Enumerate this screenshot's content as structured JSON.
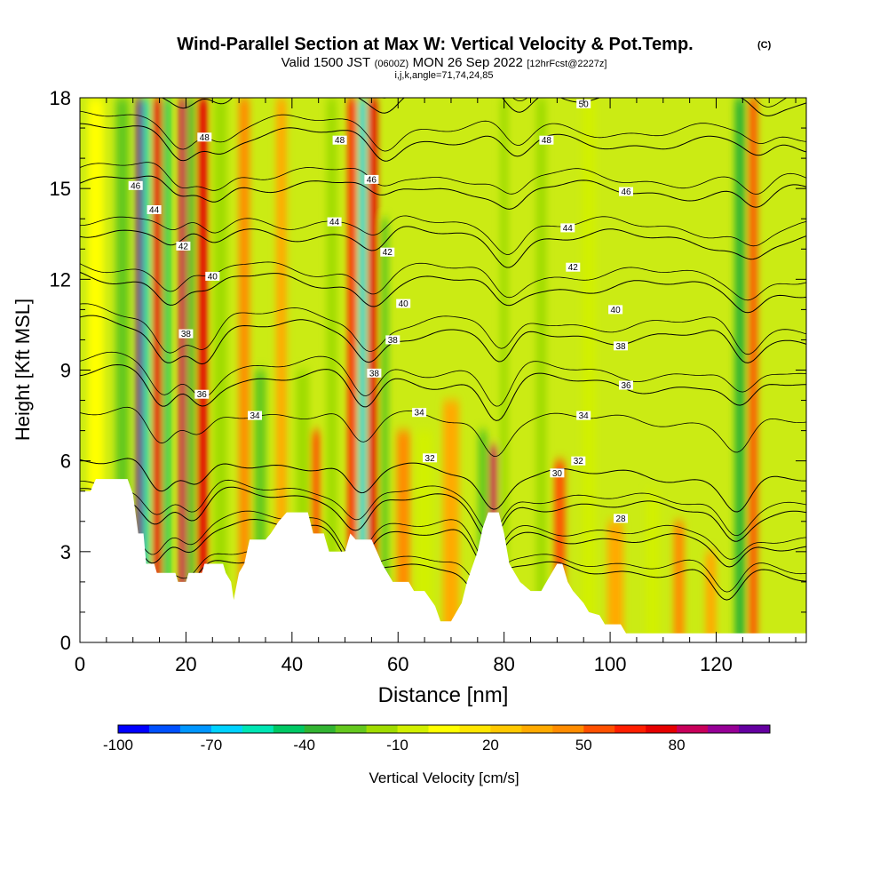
{
  "chart_data": {
    "type": "heatmap",
    "title": "Wind-Parallel Section at Max W: Vertical Velocity & Pot.Temp.",
    "title_mark": "(C)",
    "subtitle_parts": [
      "Valid 1500 JST",
      "(0600Z)",
      "MON 26 Sep 2022",
      "[12hrFcst@2227z]"
    ],
    "subtitle2": "i,j,k,angle=71,74,24,85",
    "xlabel": "Distance [nm]",
    "ylabel": "Height [Kft MSL]",
    "xlim": [
      0,
      137
    ],
    "ylim": [
      0,
      18
    ],
    "x_ticks": [
      0,
      20,
      40,
      60,
      80,
      100,
      120
    ],
    "y_ticks": [
      0,
      3,
      6,
      9,
      12,
      15,
      18
    ],
    "colorbar": {
      "label": "Vertical Velocity [cm/s]",
      "tick_labels": [
        -100,
        -70,
        -40,
        -10,
        20,
        50,
        80
      ],
      "colors": [
        "#0000ff",
        "#0050ff",
        "#0096ff",
        "#00d2ff",
        "#00e6b4",
        "#00c864",
        "#32b432",
        "#64c81e",
        "#a0dc00",
        "#d2f000",
        "#ffff00",
        "#ffe600",
        "#ffc800",
        "#ffaa00",
        "#ff8c00",
        "#ff5000",
        "#ff1e00",
        "#e60000",
        "#c8005a",
        "#960096",
        "#6400a0"
      ]
    },
    "velocity_bands": [
      {
        "x": 3,
        "w": 3,
        "v": -10,
        "ztop": 18
      },
      {
        "x": 8,
        "w": 2.5,
        "v": -40,
        "ztop": 18
      },
      {
        "x": 11.3,
        "w": 1.3,
        "v": 90,
        "ztop": 18
      },
      {
        "x": 12.6,
        "w": 1.1,
        "v": -70,
        "ztop": 18
      },
      {
        "x": 14.6,
        "w": 1.5,
        "v": 60,
        "ztop": 18
      },
      {
        "x": 16.4,
        "w": 1.2,
        "v": -55,
        "ztop": 18
      },
      {
        "x": 19.4,
        "w": 1.3,
        "v": 70,
        "ztop": 18
      },
      {
        "x": 21.0,
        "w": 1.1,
        "v": -45,
        "ztop": 18
      },
      {
        "x": 23.2,
        "w": 1.8,
        "v": 60,
        "ztop": 18
      },
      {
        "x": 26.5,
        "w": 2.5,
        "v": -30,
        "ztop": 18
      },
      {
        "x": 31,
        "w": 2,
        "v": 35,
        "ztop": 18
      },
      {
        "x": 34,
        "w": 2.2,
        "v": -40,
        "ztop": 9
      },
      {
        "x": 38,
        "w": 2,
        "v": 25,
        "ztop": 18
      },
      {
        "x": 42,
        "w": 2.5,
        "v": -30,
        "ztop": 9
      },
      {
        "x": 44.5,
        "w": 1.5,
        "v": 45,
        "ztop": 7
      },
      {
        "x": 47.5,
        "w": 2,
        "v": -25,
        "ztop": 18
      },
      {
        "x": 51.3,
        "w": 1.4,
        "v": 50,
        "ztop": 18
      },
      {
        "x": 53.3,
        "w": 1.2,
        "v": -80,
        "ztop": 18
      },
      {
        "x": 55.3,
        "w": 1.5,
        "v": 60,
        "ztop": 18
      },
      {
        "x": 57.5,
        "w": 1.4,
        "v": -40,
        "ztop": 14
      },
      {
        "x": 61,
        "w": 2.5,
        "v": 30,
        "ztop": 7
      },
      {
        "x": 65,
        "w": 3,
        "v": -20,
        "ztop": 7
      },
      {
        "x": 70,
        "w": 3,
        "v": 20,
        "ztop": 8
      },
      {
        "x": 76,
        "w": 1.8,
        "v": -40,
        "ztop": 7
      },
      {
        "x": 78,
        "w": 1.4,
        "v": 70,
        "ztop": 6.5
      },
      {
        "x": 80,
        "w": 1.5,
        "v": -25,
        "ztop": 18
      },
      {
        "x": 87,
        "w": 2,
        "v": -25,
        "ztop": 18
      },
      {
        "x": 90.5,
        "w": 2,
        "v": 45,
        "ztop": 6
      },
      {
        "x": 96,
        "w": 2.5,
        "v": -20,
        "ztop": 18
      },
      {
        "x": 101,
        "w": 3,
        "v": 25,
        "ztop": 4
      },
      {
        "x": 108,
        "w": 2.5,
        "v": -20,
        "ztop": 5
      },
      {
        "x": 113,
        "w": 2,
        "v": 30,
        "ztop": 4
      },
      {
        "x": 119,
        "w": 2,
        "v": 25,
        "ztop": 3
      },
      {
        "x": 124.5,
        "w": 2,
        "v": -45,
        "ztop": 18
      },
      {
        "x": 127,
        "w": 1.5,
        "v": 40,
        "ztop": 18
      }
    ],
    "terrain_height_kft": [
      [
        0,
        5.0
      ],
      [
        2,
        5.0
      ],
      [
        3,
        5.4
      ],
      [
        9,
        5.4
      ],
      [
        10,
        4.9
      ],
      [
        11,
        3.6
      ],
      [
        12,
        3.6
      ],
      [
        12.5,
        2.6
      ],
      [
        14,
        2.6
      ],
      [
        14.5,
        2.3
      ],
      [
        18,
        2.3
      ],
      [
        18.5,
        2.0
      ],
      [
        20,
        2.0
      ],
      [
        20.5,
        2.3
      ],
      [
        23,
        2.3
      ],
      [
        23.5,
        2.6
      ],
      [
        27,
        2.6
      ],
      [
        27.5,
        2.3
      ],
      [
        28.5,
        2.0
      ],
      [
        29,
        1.4
      ],
      [
        30,
        2.3
      ],
      [
        31,
        2.6
      ],
      [
        32,
        3.4
      ],
      [
        35,
        3.4
      ],
      [
        36,
        3.6
      ],
      [
        37.5,
        4.0
      ],
      [
        39,
        4.3
      ],
      [
        43,
        4.3
      ],
      [
        44,
        3.6
      ],
      [
        46,
        3.6
      ],
      [
        47,
        3.0
      ],
      [
        50,
        3.0
      ],
      [
        51,
        3.6
      ],
      [
        52,
        3.4
      ],
      [
        55,
        3.4
      ],
      [
        56,
        3.0
      ],
      [
        57,
        2.6
      ],
      [
        58,
        2.3
      ],
      [
        59,
        2.0
      ],
      [
        62,
        2.0
      ],
      [
        63,
        1.7
      ],
      [
        65,
        1.7
      ],
      [
        67,
        1.2
      ],
      [
        68,
        0.7
      ],
      [
        70,
        0.7
      ],
      [
        71,
        1.0
      ],
      [
        72,
        1.3
      ],
      [
        73,
        2.0
      ],
      [
        75,
        3.0
      ],
      [
        76,
        3.8
      ],
      [
        77,
        4.3
      ],
      [
        79,
        4.3
      ],
      [
        80,
        3.6
      ],
      [
        81,
        2.6
      ],
      [
        83,
        2.0
      ],
      [
        85,
        1.7
      ],
      [
        87,
        1.7
      ],
      [
        88,
        2.0
      ],
      [
        90,
        2.6
      ],
      [
        91,
        2.6
      ],
      [
        92,
        2.0
      ],
      [
        93,
        1.7
      ],
      [
        95,
        1.3
      ],
      [
        96,
        1.0
      ],
      [
        98,
        0.9
      ],
      [
        99,
        0.6
      ],
      [
        102,
        0.6
      ],
      [
        103,
        0.3
      ],
      [
        137,
        0.3
      ]
    ],
    "theta_contours": [
      {
        "level": 28,
        "labeled": true
      },
      {
        "level": 30,
        "labeled": true
      },
      {
        "level": 32,
        "labeled": true
      },
      {
        "level": 34,
        "labeled": true
      },
      {
        "level": 36,
        "labeled": true
      },
      {
        "level": 38,
        "labeled": true
      },
      {
        "level": 40,
        "labeled": true
      },
      {
        "level": 42,
        "labeled": true
      },
      {
        "level": 44,
        "labeled": true
      },
      {
        "level": 46,
        "labeled": true
      },
      {
        "level": 48,
        "labeled": true
      },
      {
        "level": 50,
        "labeled": true
      }
    ],
    "contour_labels": [
      {
        "text": "50",
        "x": 95,
        "y": 17.8
      },
      {
        "text": "48",
        "x": 23.5,
        "y": 16.7
      },
      {
        "text": "48",
        "x": 49,
        "y": 16.6
      },
      {
        "text": "48",
        "x": 88,
        "y": 16.6
      },
      {
        "text": "46",
        "x": 10.5,
        "y": 15.1
      },
      {
        "text": "46",
        "x": 55,
        "y": 15.3
      },
      {
        "text": "46",
        "x": 103,
        "y": 14.9
      },
      {
        "text": "44",
        "x": 14,
        "y": 14.3
      },
      {
        "text": "44",
        "x": 48,
        "y": 13.9
      },
      {
        "text": "44",
        "x": 92,
        "y": 13.7
      },
      {
        "text": "42",
        "x": 19.5,
        "y": 13.1
      },
      {
        "text": "42",
        "x": 58,
        "y": 12.9
      },
      {
        "text": "42",
        "x": 93,
        "y": 12.4
      },
      {
        "text": "40",
        "x": 25,
        "y": 12.1
      },
      {
        "text": "40",
        "x": 61,
        "y": 11.2
      },
      {
        "text": "40",
        "x": 101,
        "y": 11.0
      },
      {
        "text": "38",
        "x": 20,
        "y": 10.2
      },
      {
        "text": "38",
        "x": 59,
        "y": 10.0
      },
      {
        "text": "38",
        "x": 102,
        "y": 9.8
      },
      {
        "text": "38",
        "x": 55.5,
        "y": 8.9
      },
      {
        "text": "36",
        "x": 23,
        "y": 8.2
      },
      {
        "text": "36",
        "x": 103,
        "y": 8.5
      },
      {
        "text": "34",
        "x": 33,
        "y": 7.5
      },
      {
        "text": "34",
        "x": 64,
        "y": 7.6
      },
      {
        "text": "34",
        "x": 95,
        "y": 7.5
      },
      {
        "text": "32",
        "x": 66,
        "y": 6.1
      },
      {
        "text": "32",
        "x": 94,
        "y": 6.0
      },
      {
        "text": "30",
        "x": 90,
        "y": 5.6
      },
      {
        "text": "28",
        "x": 102,
        "y": 4.1
      }
    ]
  }
}
